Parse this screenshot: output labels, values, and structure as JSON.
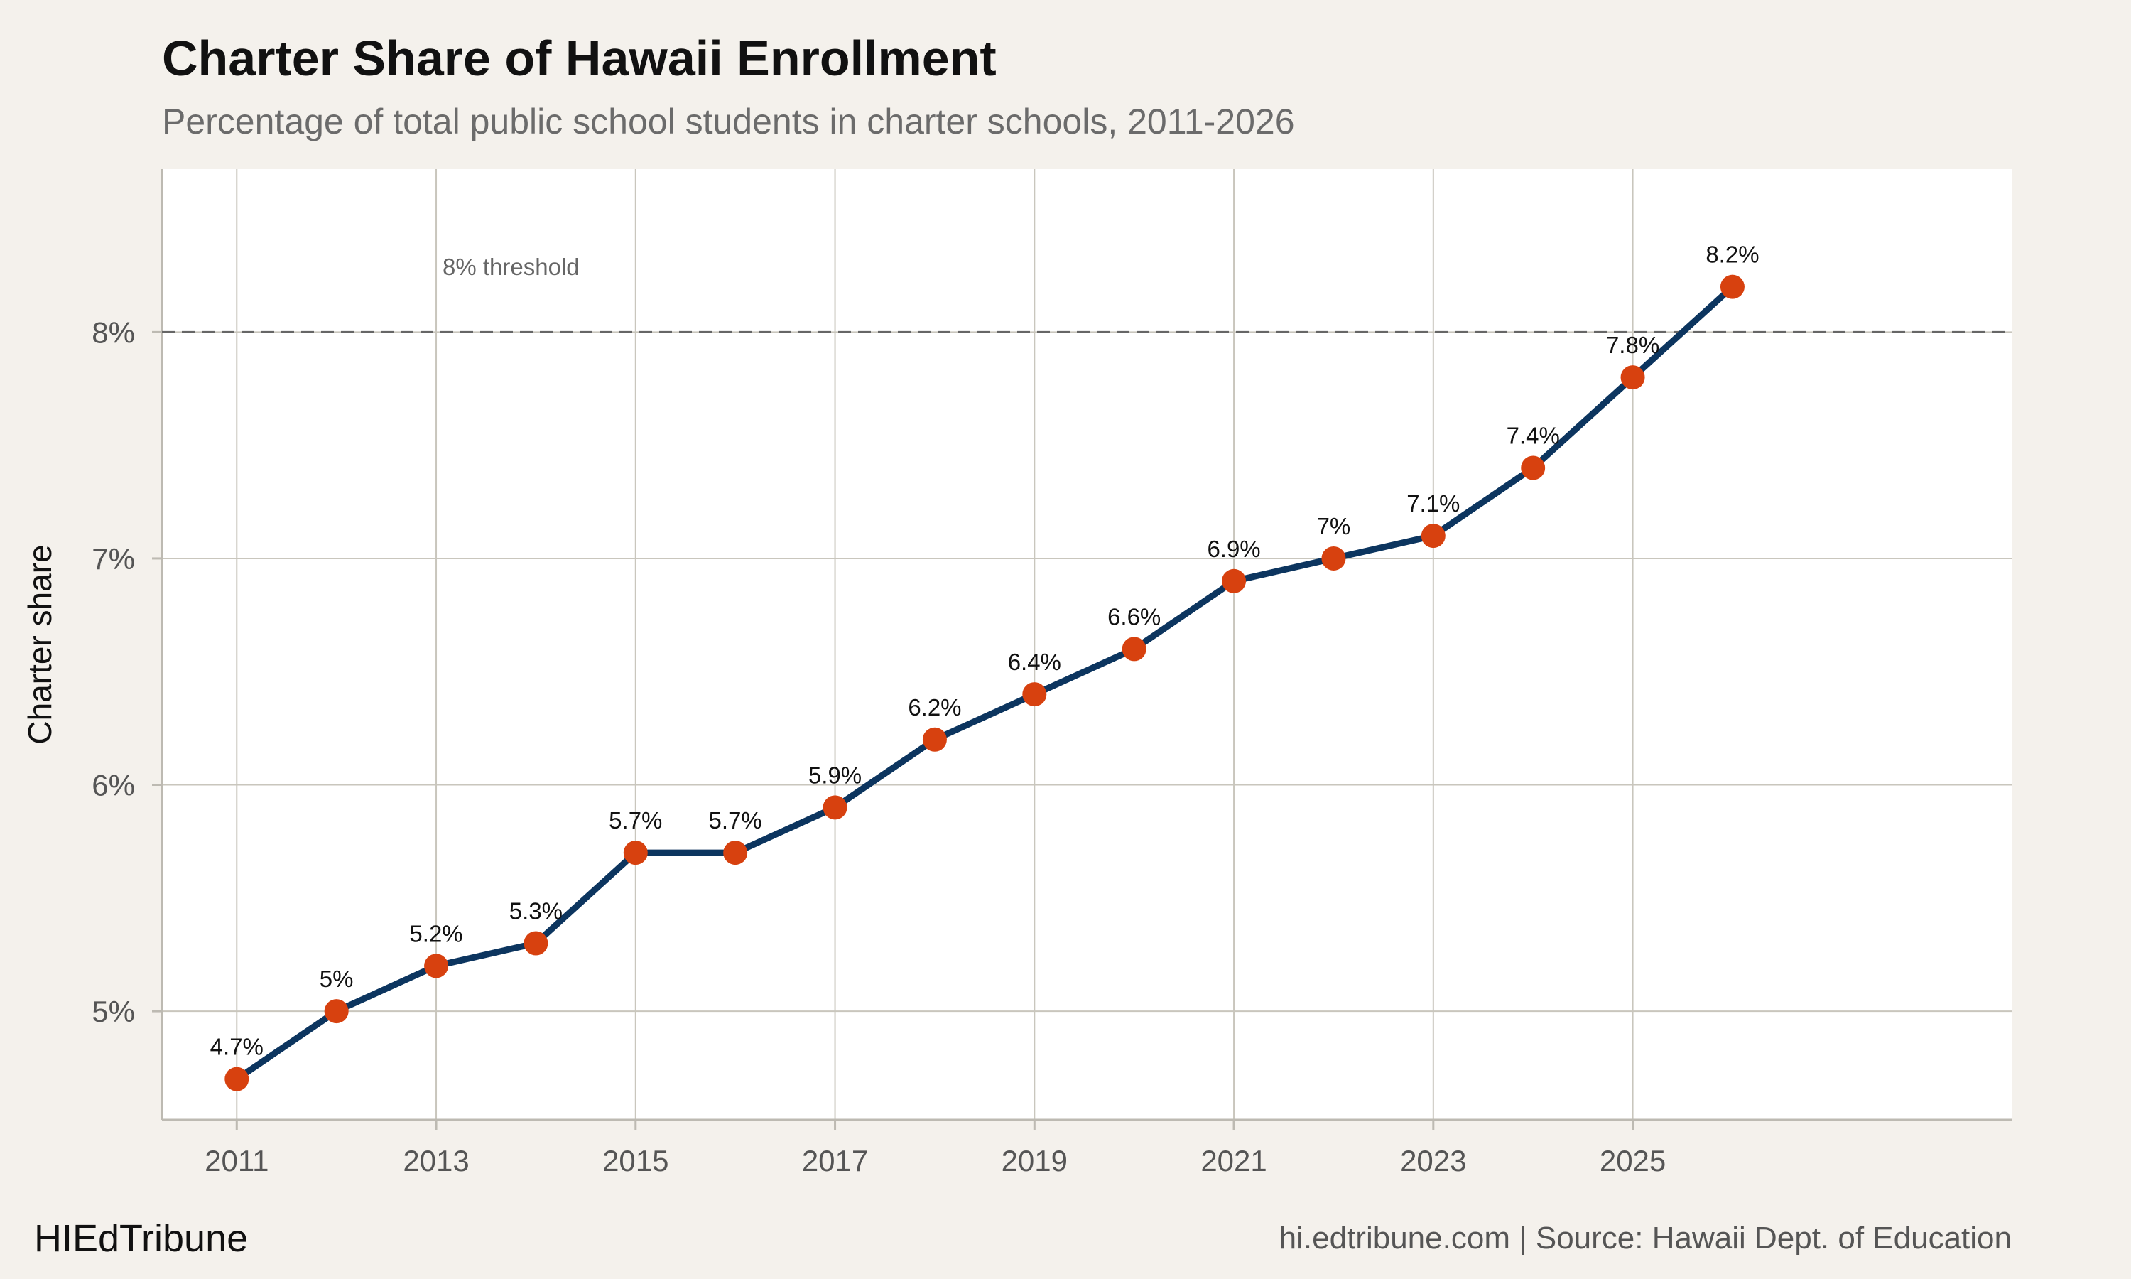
{
  "header": {
    "title": "Charter Share of Hawaii Enrollment",
    "subtitle": "Percentage of total public school students in charter schools, 2011-2026"
  },
  "footer": {
    "brand": "HIEdTribune",
    "source": "hi.edtribune.com | Source: Hawaii Dept. of Education"
  },
  "colors": {
    "background": "#f4f1ec",
    "plot_background": "#ffffff",
    "grid": "#c9c6bd",
    "line": "#0c355f",
    "point": "#d7410f",
    "reference_line": "#666666"
  },
  "chart_data": {
    "type": "line",
    "title": "Charter Share of Hawaii Enrollment",
    "subtitle": "Percentage of total public school students in charter schools, 2011-2026",
    "xlabel": "",
    "ylabel": "Charter share",
    "x": [
      2011,
      2012,
      2013,
      2014,
      2015,
      2016,
      2017,
      2018,
      2019,
      2020,
      2021,
      2022,
      2023,
      2024,
      2025,
      2026
    ],
    "series": [
      {
        "values": [
          4.7,
          5.0,
          5.2,
          5.3,
          5.7,
          5.7,
          5.9,
          6.2,
          6.4,
          6.6,
          6.9,
          7.0,
          7.1,
          7.4,
          7.8,
          8.2
        ],
        "labels": [
          "4.7%",
          "5%",
          "5.2%",
          "5.3%",
          "5.7%",
          "5.7%",
          "5.9%",
          "6.2%",
          "6.4%",
          "6.6%",
          "6.9%",
          "7%",
          "7.1%",
          "7.4%",
          "7.8%",
          "8.2%"
        ]
      }
    ],
    "xticks": [
      2011,
      2013,
      2015,
      2017,
      2019,
      2021,
      2023,
      2025
    ],
    "xtick_labels": [
      "2011",
      "2013",
      "2015",
      "2017",
      "2019",
      "2021",
      "2023",
      "2025"
    ],
    "yticks": [
      5,
      6,
      7,
      8
    ],
    "ytick_labels": [
      "5%",
      "6%",
      "7%",
      "8%"
    ],
    "xlim": [
      2010.25,
      2028.8
    ],
    "ylim": [
      4.52,
      8.72
    ],
    "grid": true,
    "reference_line": {
      "y": 8,
      "label": "8% threshold",
      "label_x": 2013.75,
      "label_y": 8.29,
      "style": "dashed"
    }
  }
}
